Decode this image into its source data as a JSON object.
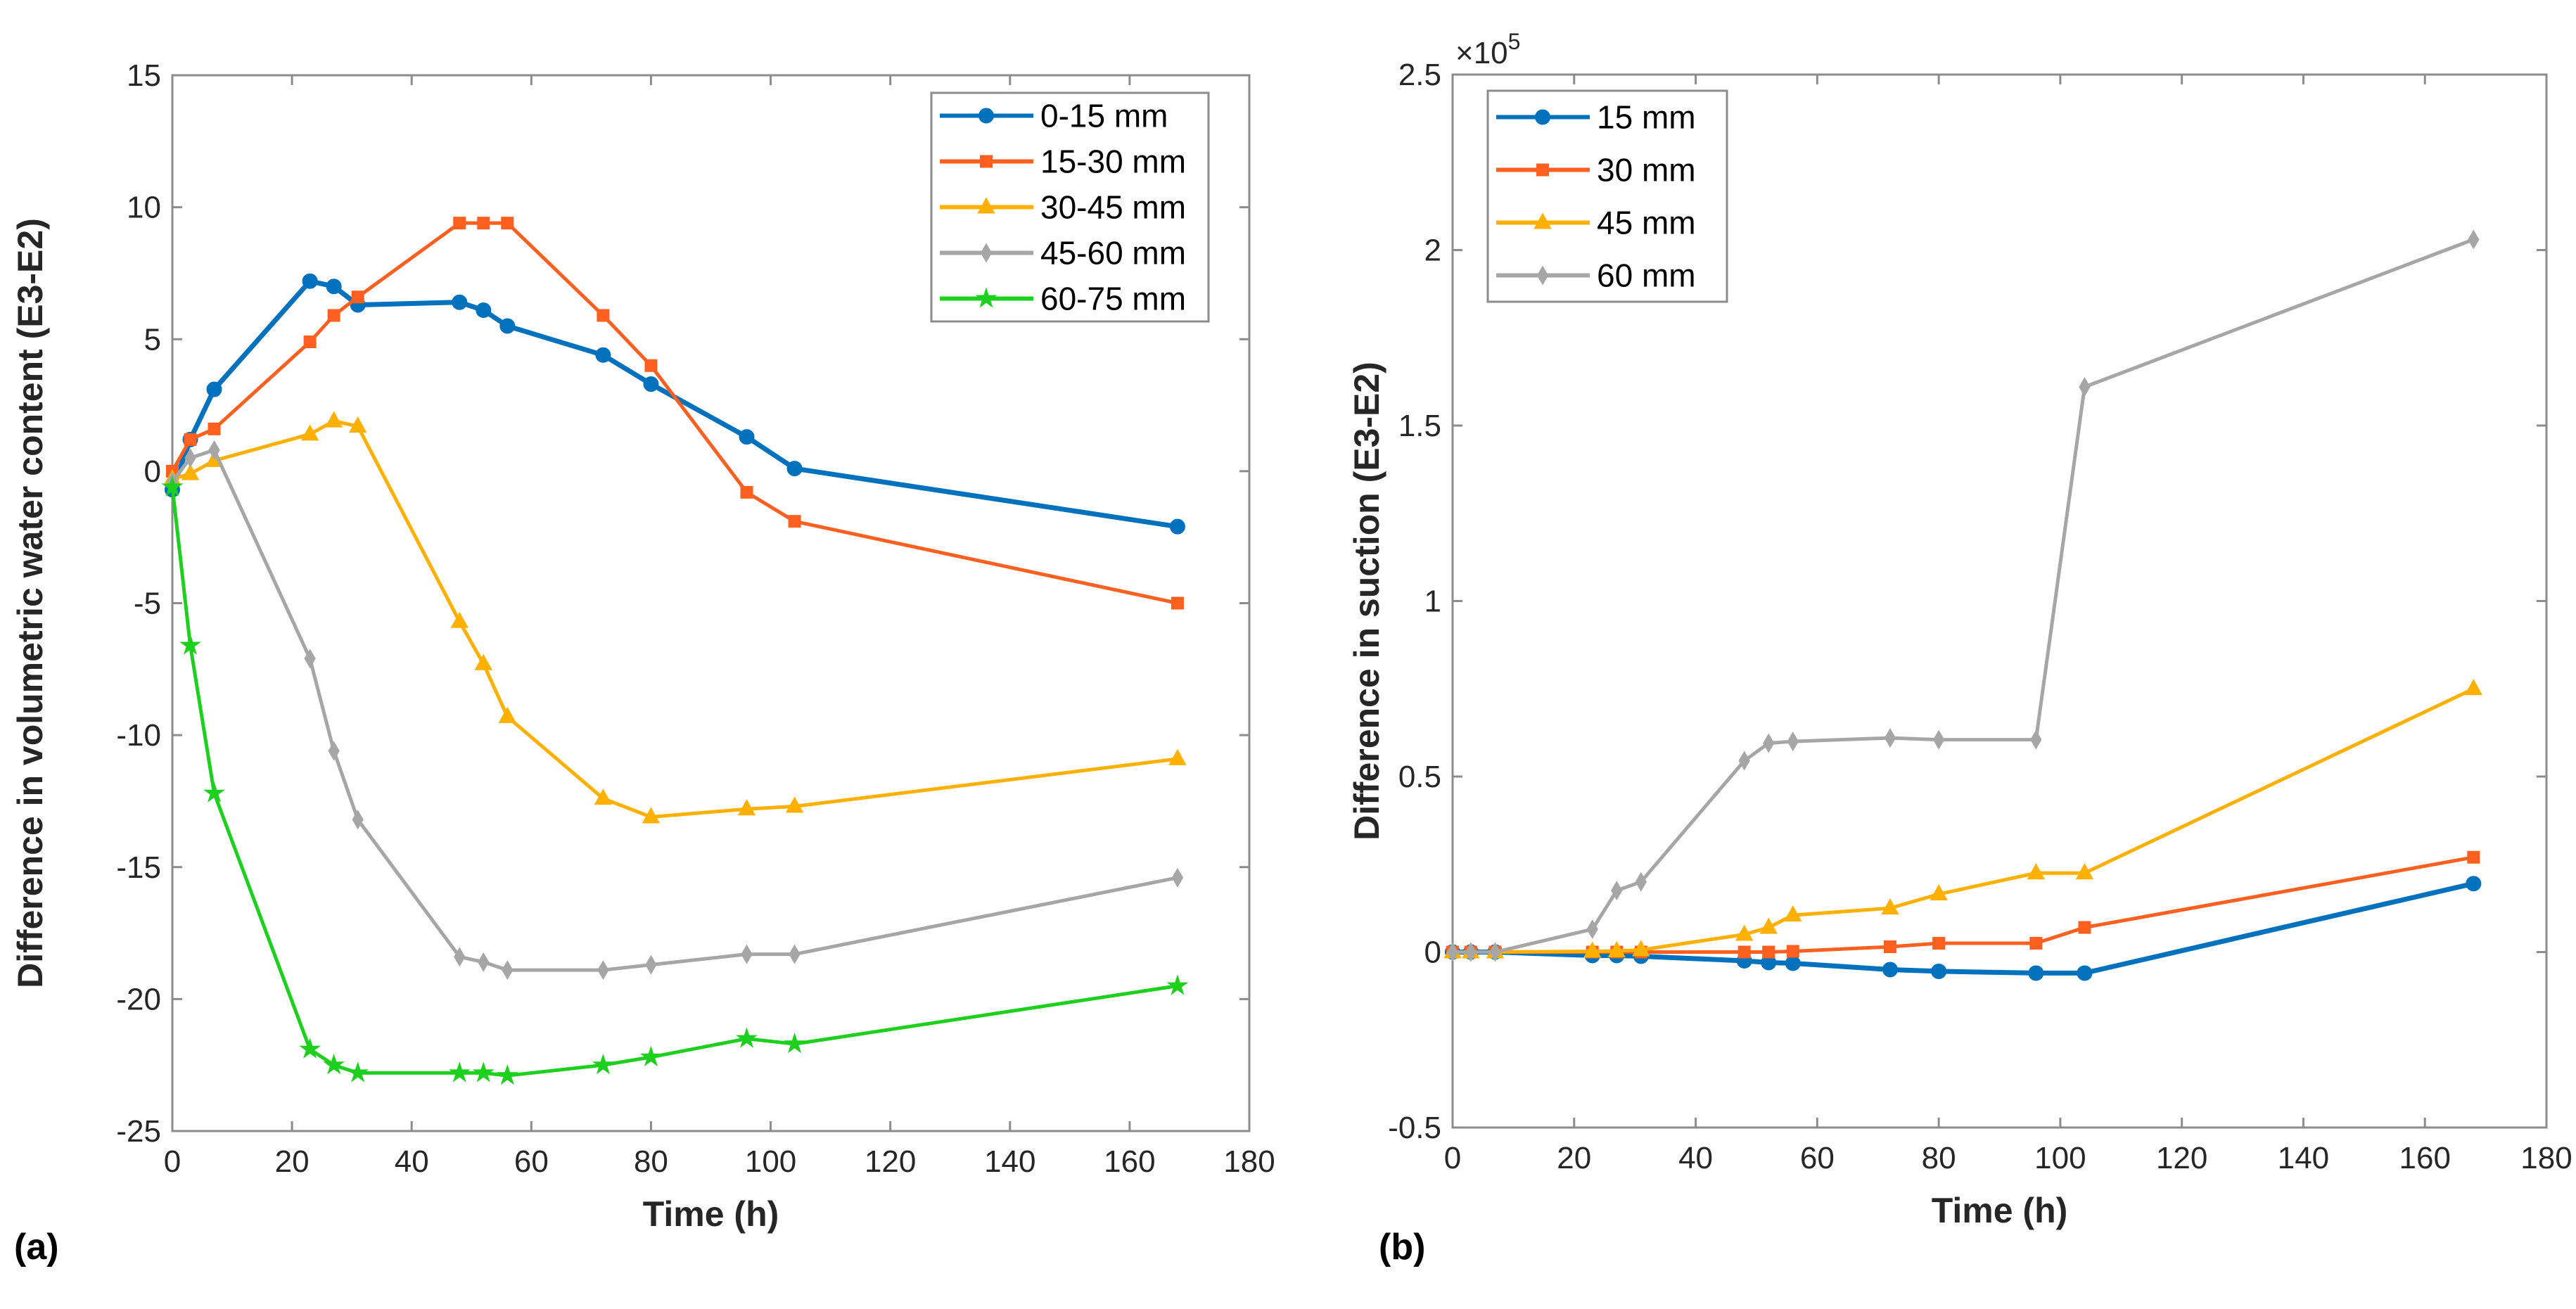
{
  "chart_data": [
    {
      "type": "line",
      "panel_label": "(a)",
      "xlabel": "Time (h)",
      "ylabel": "Difference in volumetric water content (E3-E2)",
      "xlim": [
        0,
        180
      ],
      "ylim": [
        -25,
        15
      ],
      "xticks": [
        "0",
        "20",
        "40",
        "60",
        "80",
        "100",
        "120",
        "140",
        "160",
        "180"
      ],
      "yticks": [
        "-25",
        "-20",
        "-15",
        "-10",
        "-5",
        "0",
        "5",
        "10",
        "15"
      ],
      "grid": false,
      "legend_position": "top-right",
      "x": [
        0,
        3,
        7,
        23,
        27,
        31,
        48,
        52,
        56,
        72,
        80,
        96,
        104,
        168
      ],
      "series": [
        {
          "name": "0-15 mm",
          "color": "#0072BD",
          "marker": "circle",
          "values": [
            -0.7,
            1.2,
            3.1,
            7.2,
            7.0,
            6.3,
            6.4,
            6.1,
            5.5,
            4.4,
            3.3,
            1.3,
            0.1,
            -2.1
          ]
        },
        {
          "name": "15-30 mm",
          "color": "#FF5F1F",
          "marker": "square",
          "values": [
            0.0,
            1.2,
            1.6,
            4.9,
            5.9,
            6.6,
            9.4,
            9.4,
            9.4,
            5.9,
            4.0,
            -0.8,
            -1.9,
            -5.0
          ]
        },
        {
          "name": "30-45 mm",
          "color": "#FFB000",
          "marker": "triangle",
          "values": [
            -0.3,
            -0.1,
            0.4,
            1.4,
            1.9,
            1.7,
            -5.7,
            -7.3,
            -9.3,
            -12.4,
            -13.1,
            -12.8,
            -12.7,
            -10.9
          ]
        },
        {
          "name": "45-60 mm",
          "color": "#A6A6A6",
          "marker": "diamond",
          "values": [
            -0.4,
            0.5,
            0.8,
            -7.1,
            -10.6,
            -13.2,
            -18.4,
            -18.6,
            -18.9,
            -18.9,
            -18.7,
            -18.3,
            -18.3,
            -15.4
          ]
        },
        {
          "name": "60-75 mm",
          "color": "#1ED01E",
          "marker": "star",
          "values": [
            -0.6,
            -6.6,
            -12.2,
            -21.9,
            -22.5,
            -22.8,
            -22.8,
            -22.8,
            -22.9,
            -22.5,
            -22.2,
            -21.5,
            -21.7,
            -19.5
          ]
        }
      ]
    },
    {
      "type": "line",
      "panel_label": "(b)",
      "xlabel": "Time (h)",
      "ylabel": "Difference in suction (E3-E2)",
      "y_multiplier": "×10",
      "y_multiplier_exp": "5",
      "xlim": [
        0,
        180
      ],
      "ylim": [
        -0.5,
        2.5
      ],
      "xticks": [
        "0",
        "20",
        "40",
        "60",
        "80",
        "100",
        "120",
        "140",
        "160",
        "180"
      ],
      "yticks": [
        "-0.5",
        "0",
        "0.5",
        "1",
        "1.5",
        "2",
        "2.5"
      ],
      "grid": false,
      "legend_position": "top-left",
      "x": [
        0,
        3,
        7,
        23,
        27,
        31,
        48,
        52,
        56,
        72,
        80,
        96,
        104,
        168
      ],
      "series": [
        {
          "name": "15 mm",
          "color": "#0072BD",
          "marker": "circle",
          "values": [
            0,
            0,
            0,
            -0.01,
            -0.01,
            -0.012,
            -0.025,
            -0.03,
            -0.032,
            -0.05,
            -0.055,
            -0.06,
            -0.06,
            0.195
          ]
        },
        {
          "name": "30 mm",
          "color": "#FF5F1F",
          "marker": "square",
          "values": [
            0,
            0,
            0,
            0,
            0,
            0,
            0,
            0,
            0.002,
            0.015,
            0.025,
            0.025,
            0.07,
            0.27
          ]
        },
        {
          "name": "45 mm",
          "color": "#FFB000",
          "marker": "triangle",
          "values": [
            0,
            0,
            0,
            0.002,
            0.003,
            0.006,
            0.05,
            0.07,
            0.105,
            0.125,
            0.165,
            0.225,
            0.225,
            0.75
          ]
        },
        {
          "name": "60 mm",
          "color": "#A6A6A6",
          "marker": "diamond",
          "values": [
            0,
            0,
            0,
            0.065,
            0.175,
            0.2,
            0.545,
            0.595,
            0.6,
            0.61,
            0.605,
            0.605,
            1.61,
            2.03
          ]
        }
      ]
    }
  ]
}
